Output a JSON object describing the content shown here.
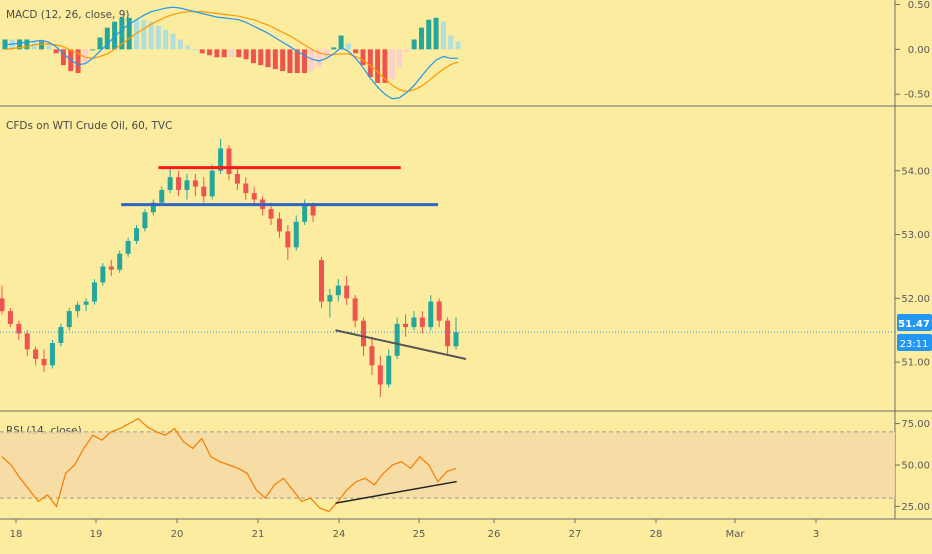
{
  "chart_data": [
    {
      "type": "histogram+line",
      "pane": "macd",
      "title": "MACD (12, 26, close, 9)",
      "y_ticks": [
        "0.50",
        "0.00",
        "-0.50"
      ],
      "ylim": [
        -0.62,
        0.55
      ],
      "series": [
        {
          "values": [
            0.05,
            0.06,
            0.07,
            0.08,
            0.09,
            0.1,
            0.08,
            0.03,
            -0.05,
            -0.12,
            -0.17,
            -0.16,
            -0.1,
            -0.02,
            0.06,
            0.14,
            0.22,
            0.28,
            0.33,
            0.38,
            0.42,
            0.44,
            0.46,
            0.47,
            0.46,
            0.44,
            0.42,
            0.4,
            0.38,
            0.36,
            0.35,
            0.34,
            0.33,
            0.3,
            0.26,
            0.22,
            0.18,
            0.13,
            0.08,
            0.03,
            -0.02,
            -0.07,
            -0.11,
            -0.13,
            -0.1,
            -0.05,
            0.02,
            -0.02,
            -0.1,
            -0.2,
            -0.32,
            -0.42,
            -0.5,
            -0.55,
            -0.54,
            -0.48,
            -0.4,
            -0.3,
            -0.2,
            -0.12,
            -0.08,
            -0.1,
            -0.1
          ]
        },
        {
          "values": [
            0.0,
            0.01,
            0.02,
            0.03,
            0.05,
            0.06,
            0.06,
            0.05,
            0.03,
            -0.01,
            -0.05,
            -0.09,
            -0.1,
            -0.08,
            -0.05,
            0.0,
            0.06,
            0.12,
            0.18,
            0.23,
            0.28,
            0.32,
            0.36,
            0.39,
            0.41,
            0.42,
            0.42,
            0.42,
            0.41,
            0.4,
            0.39,
            0.38,
            0.37,
            0.35,
            0.33,
            0.3,
            0.27,
            0.23,
            0.19,
            0.15,
            0.1,
            0.05,
            0.0,
            -0.04,
            -0.06,
            -0.06,
            -0.05,
            -0.05,
            -0.08,
            -0.12,
            -0.18,
            -0.25,
            -0.33,
            -0.4,
            -0.45,
            -0.47,
            -0.45,
            -0.41,
            -0.35,
            -0.28,
            -0.22,
            -0.17,
            -0.14
          ]
        }
      ]
    },
    {
      "type": "candlestick",
      "pane": "price",
      "title": "CFDs on WTI Crude Oil, 60, TVC",
      "y_ticks": [
        "54.00",
        "53.00",
        "52.00",
        "51.00"
      ],
      "ylim": [
        50.25,
        55.0
      ],
      "price_label": "51.47",
      "countdown_label": "23:11",
      "last_price": 51.47,
      "candles": [
        [
          52.0,
          52.2,
          51.75,
          51.8
        ],
        [
          51.8,
          51.85,
          51.55,
          51.6
        ],
        [
          51.6,
          51.65,
          51.35,
          51.45
        ],
        [
          51.45,
          51.5,
          51.1,
          51.2
        ],
        [
          51.2,
          51.25,
          50.95,
          51.05
        ],
        [
          51.05,
          51.2,
          50.85,
          50.95
        ],
        [
          50.95,
          51.35,
          50.9,
          51.3
        ],
        [
          51.3,
          51.6,
          51.25,
          51.55
        ],
        [
          51.55,
          51.85,
          51.5,
          51.8
        ],
        [
          51.8,
          51.95,
          51.7,
          51.9
        ],
        [
          51.9,
          52.0,
          51.8,
          51.95
        ],
        [
          51.95,
          52.3,
          51.9,
          52.25
        ],
        [
          52.25,
          52.55,
          52.2,
          52.5
        ],
        [
          52.5,
          52.6,
          52.35,
          52.45
        ],
        [
          52.45,
          52.75,
          52.4,
          52.7
        ],
        [
          52.7,
          52.95,
          52.65,
          52.9
        ],
        [
          52.9,
          53.15,
          52.85,
          53.1
        ],
        [
          53.1,
          53.4,
          53.05,
          53.35
        ],
        [
          53.35,
          53.55,
          53.3,
          53.5
        ],
        [
          53.5,
          53.75,
          53.45,
          53.7
        ],
        [
          53.7,
          54.05,
          53.65,
          53.9
        ],
        [
          53.9,
          54.0,
          53.6,
          53.7
        ],
        [
          53.7,
          53.95,
          53.55,
          53.85
        ],
        [
          53.85,
          53.95,
          53.6,
          53.75
        ],
        [
          53.75,
          53.9,
          53.5,
          53.6
        ],
        [
          53.6,
          54.1,
          53.55,
          54.0
        ],
        [
          54.0,
          54.5,
          53.95,
          54.35
        ],
        [
          54.35,
          54.4,
          53.85,
          53.95
        ],
        [
          53.95,
          54.05,
          53.7,
          53.8
        ],
        [
          53.8,
          53.9,
          53.55,
          53.65
        ],
        [
          53.65,
          53.75,
          53.45,
          53.55
        ],
        [
          53.55,
          53.6,
          53.3,
          53.4
        ],
        [
          53.4,
          53.5,
          53.15,
          53.25
        ],
        [
          53.25,
          53.35,
          52.95,
          53.05
        ],
        [
          53.05,
          53.15,
          52.6,
          52.8
        ],
        [
          52.8,
          53.3,
          52.75,
          53.2
        ],
        [
          53.2,
          53.55,
          53.15,
          53.45
        ],
        [
          53.45,
          53.5,
          53.2,
          53.3
        ],
        [
          52.6,
          52.65,
          51.85,
          51.95
        ],
        [
          51.95,
          52.15,
          51.7,
          52.05
        ],
        [
          52.05,
          52.3,
          51.95,
          52.2
        ],
        [
          52.2,
          52.35,
          51.9,
          52.0
        ],
        [
          52.0,
          52.05,
          51.55,
          51.65
        ],
        [
          51.65,
          51.7,
          51.1,
          51.25
        ],
        [
          51.25,
          51.4,
          50.8,
          50.95
        ],
        [
          50.95,
          51.1,
          50.45,
          50.65
        ],
        [
          50.65,
          51.2,
          50.6,
          51.1
        ],
        [
          51.1,
          51.7,
          51.05,
          51.6
        ],
        [
          51.6,
          51.75,
          51.4,
          51.55
        ],
        [
          51.55,
          51.8,
          51.5,
          51.7
        ],
        [
          51.7,
          51.8,
          51.45,
          51.55
        ],
        [
          51.55,
          52.05,
          51.5,
          51.95
        ],
        [
          51.95,
          52.0,
          51.55,
          51.65
        ],
        [
          51.65,
          51.7,
          51.1,
          51.25
        ],
        [
          51.25,
          51.7,
          51.2,
          51.47
        ]
      ],
      "lines": [
        {
          "name": "resistance",
          "color": "#ff1a1a",
          "x0": 0.17,
          "x1": 0.43,
          "y0": 54.05,
          "y1": 54.05
        },
        {
          "name": "support",
          "color": "#2e64c8",
          "x0": 0.13,
          "x1": 0.47,
          "y0": 53.47,
          "y1": 53.47
        },
        {
          "name": "trendline",
          "color": "#555555",
          "x0": 0.36,
          "x1": 0.5,
          "y0": 51.5,
          "y1": 51.05
        }
      ]
    },
    {
      "type": "line",
      "pane": "rsi",
      "title": "RSI (14, close)",
      "y_ticks": [
        "75.00",
        "50.00",
        "25.00"
      ],
      "ylim": [
        18,
        82
      ],
      "values": [
        55,
        50,
        42,
        35,
        28,
        32,
        25,
        45,
        50,
        60,
        68,
        65,
        70,
        72,
        75,
        78,
        73,
        70,
        68,
        72,
        64,
        60,
        66,
        55,
        52,
        50,
        48,
        45,
        35,
        30,
        38,
        42,
        35,
        28,
        30,
        24,
        22,
        28,
        35,
        40,
        42,
        38,
        45,
        50,
        52,
        48,
        55,
        50,
        40,
        46,
        48
      ],
      "band": [
        30,
        70
      ],
      "divergence": {
        "color": "#222222",
        "x0": 0.36,
        "x1": 0.49,
        "y0": 27,
        "y1": 40
      }
    }
  ],
  "x_ticks": [
    "18",
    "19",
    "20",
    "21",
    "24",
    "25",
    "26",
    "27",
    "28",
    "Mar",
    "3"
  ],
  "colors": {
    "background": "#fbeca0",
    "up": "#26a69a",
    "down": "#ef5350",
    "macd": "#2196f3",
    "signal": "#ff9800",
    "rsi": "#f57c00",
    "price_tag": "#2196f3"
  }
}
